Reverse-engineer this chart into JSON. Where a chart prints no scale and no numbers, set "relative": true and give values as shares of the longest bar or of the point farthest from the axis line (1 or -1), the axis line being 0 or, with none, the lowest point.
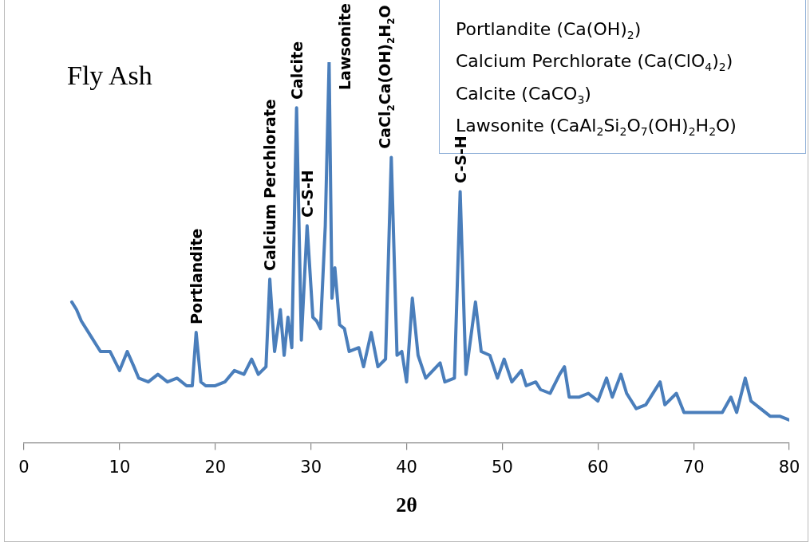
{
  "chart_data": {
    "type": "line",
    "title": "Fly Ash",
    "xlabel": "2θ",
    "relative": true,
    "xlim": [
      0,
      80
    ],
    "xticks": [
      0,
      10,
      20,
      30,
      40,
      50,
      60,
      70,
      80
    ],
    "grid": false,
    "legend": false,
    "marker": "none",
    "tick_labels": "x",
    "x": [
      5,
      5.5,
      6,
      7,
      8,
      9,
      10,
      10.8,
      11.5,
      12,
      13,
      14,
      15,
      16,
      17,
      17.6,
      18,
      18.5,
      19,
      20,
      21,
      22,
      23,
      23.8,
      24.5,
      25.3,
      25.7,
      26.2,
      26.8,
      27.2,
      27.6,
      28,
      28.5,
      29,
      29.6,
      30.2,
      30.6,
      31,
      31.5,
      31.9,
      32.2,
      32.5,
      33,
      33.5,
      34,
      35,
      35.5,
      36.3,
      37,
      37.8,
      38.4,
      39,
      39.5,
      40,
      40.6,
      41.2,
      42,
      43.5,
      44,
      45,
      45.6,
      46.2,
      47.2,
      47.8,
      48.7,
      49.5,
      50.2,
      51,
      52,
      52.5,
      53.5,
      54,
      55,
      56,
      56.5,
      57,
      58,
      59,
      60,
      60.9,
      61.5,
      62.4,
      63,
      64,
      65,
      66.5,
      67,
      68.2,
      69,
      70,
      72,
      73,
      73.9,
      74.5,
      75.4,
      76,
      77,
      78,
      79,
      80
    ],
    "series": [
      {
        "color": "#4a7ebb",
        "values": [
          0.37,
          0.35,
          0.32,
          0.28,
          0.24,
          0.24,
          0.19,
          0.24,
          0.2,
          0.17,
          0.16,
          0.18,
          0.16,
          0.17,
          0.15,
          0.15,
          0.29,
          0.16,
          0.15,
          0.15,
          0.16,
          0.19,
          0.18,
          0.22,
          0.18,
          0.2,
          0.43,
          0.24,
          0.35,
          0.23,
          0.33,
          0.25,
          0.88,
          0.27,
          0.57,
          0.33,
          0.32,
          0.3,
          0.57,
          1,
          0.38,
          0.46,
          0.31,
          0.3,
          0.24,
          0.25,
          0.2,
          0.29,
          0.2,
          0.22,
          0.75,
          0.23,
          0.24,
          0.16,
          0.38,
          0.23,
          0.17,
          0.21,
          0.16,
          0.17,
          0.66,
          0.18,
          0.37,
          0.24,
          0.23,
          0.17,
          0.22,
          0.16,
          0.19,
          0.15,
          0.16,
          0.14,
          0.13,
          0.18,
          0.2,
          0.12,
          0.12,
          0.13,
          0.11,
          0.17,
          0.12,
          0.18,
          0.13,
          0.09,
          0.1,
          0.16,
          0.1,
          0.13,
          0.08,
          0.08,
          0.08,
          0.08,
          0.12,
          0.08,
          0.17,
          0.11,
          0.09,
          0.07,
          0.07,
          0.06
        ]
      }
    ],
    "annotations": [
      {
        "text": "Portlandite",
        "x": 18,
        "y": 0.29
      },
      {
        "text": "Calcium Perchlorate",
        "x": 25.7,
        "y": 0.43
      },
      {
        "text": "Calcite",
        "x": 28.5,
        "y": 0.88
      },
      {
        "text": "C-S-H",
        "x": 29.6,
        "y": 0.57
      },
      {
        "text": "Lawsonite",
        "x": 31.9,
        "y": 1
      },
      {
        "text": "CaCl$_{2}$Ca(OH)$_{2}$H$_{2}$O",
        "x": 38.4,
        "y": 0.75
      },
      {
        "text": "C-S-H",
        "x": 45.6,
        "y": 0.66
      },
      "Portlandite (Ca(OH)$_{2}$)",
      "Calcium Perchlorate (Ca(ClO$_{4}$)$_{2}$)",
      "Calcite (CaCO$_{3}$)",
      "Lawsonite (CaAl$_{2}$Si$_{2}$O$_{7}$(OH)$_{2}$H$_{2}$O)"
    ]
  }
}
